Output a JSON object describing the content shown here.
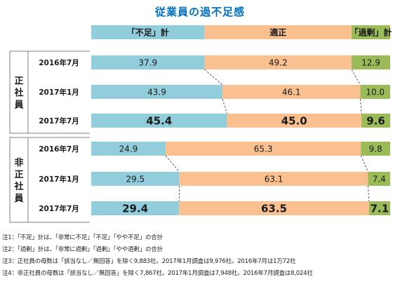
{
  "colors": {
    "title": "#0070c0",
    "shortage": "#92cddc",
    "adequate": "#fac090",
    "excess": "#9bbb59",
    "excess_dark": "#77933c",
    "guide": "#3c3c3c"
  },
  "chart_data": {
    "type": "bar",
    "stacked": true,
    "orientation": "horizontal",
    "title": "従業員の過不足感",
    "legend": {
      "placement": "top",
      "entries": [
        "「不足」計",
        "適正",
        "「過剰」計"
      ]
    },
    "groups": [
      {
        "name": "正社員",
        "rows": [
          {
            "label": "2016年7月",
            "values": [
              37.9,
              49.2,
              12.9
            ],
            "bold": false
          },
          {
            "label": "2017年1月",
            "values": [
              43.9,
              46.1,
              10.0
            ],
            "value_labels": [
              "43.9",
              "46.1",
              "10.0"
            ],
            "bold": false
          },
          {
            "label": "2017年7月",
            "values": [
              45.4,
              45.0,
              9.6
            ],
            "value_labels": [
              "45.4",
              "45.0",
              "9.6"
            ],
            "bold": true
          }
        ]
      },
      {
        "name": "非正社員",
        "rows": [
          {
            "label": "2016年7月",
            "values": [
              24.9,
              65.3,
              9.8
            ],
            "bold": false
          },
          {
            "label": "2017年1月",
            "values": [
              29.5,
              63.1,
              7.4
            ],
            "bold": false
          },
          {
            "label": "2017年7月",
            "values": [
              29.4,
              63.5,
              7.1
            ],
            "bold": true
          }
        ]
      }
    ],
    "series": [
      {
        "name": "「不足」計"
      },
      {
        "name": "適正"
      },
      {
        "name": "「過剰」計"
      }
    ],
    "xlim": [
      0,
      100
    ],
    "grid": false
  },
  "notes": [
    "注1：「不足」計は、「非常に不足」「不足」「やや不足」の合計",
    "注2：「過剰」計は、「非常に過剰」「過剰」「やや過剰」の合計",
    "注3：正社員の母数は「該当なし／無回答」を除く9,883社。2017年1月調査は9,976社。2016年7月は1万72社",
    "注4：非正社員の母数は「該当なし／無回答」を除く7,867社。2017年1月調査は7,948社。2016年7月調査は8,024社"
  ]
}
